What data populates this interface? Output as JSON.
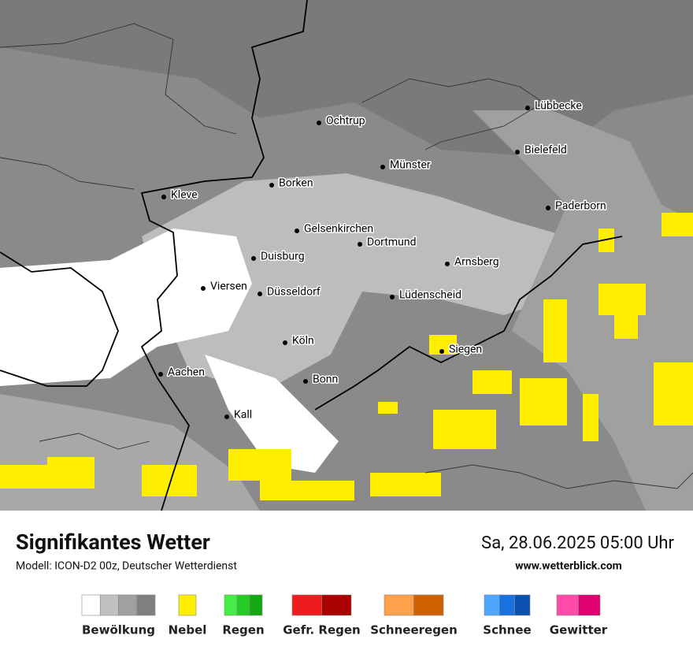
{
  "title": "Signifikantes Wetter",
  "subtitle": "Modell: ICON-D2 00z, Deutscher Wetterdienst",
  "datetime": "Sa, 28.06.2025 05:00 Uhr",
  "website": "www.wetterblick.com",
  "cities": [
    "Lübbecke",
    "Ochtrup",
    "Bielefeld",
    "Münster",
    "Borken",
    "Kleve",
    "Paderborn",
    "Gelsenkirchen",
    "Dortmund",
    "Duisburg",
    "Arnsberg",
    "Viersen",
    "Düsseldorf",
    "Lüdenscheid",
    "Köln",
    "Siegen",
    "Aachen",
    "Bonn",
    "Kall"
  ],
  "legend": [
    {
      "label": "Bewölkung",
      "colors": [
        "#ffffff",
        "#c0c0c0",
        "#a0a0a0",
        "#808080"
      ]
    },
    {
      "label": "Nebel",
      "colors": [
        "#ffee00"
      ]
    },
    {
      "label": "Regen",
      "colors": [
        "#44ee44",
        "#22cc22",
        "#10aa10"
      ]
    },
    {
      "label": "Gefr. Regen",
      "colors": [
        "#ee1c1c",
        "#aa0000"
      ]
    },
    {
      "label": "Schneeregen",
      "colors": [
        "#ffa04a",
        "#d06000"
      ]
    },
    {
      "label": "Schnee",
      "colors": [
        "#4ea6ff",
        "#1a70e0",
        "#0a50b0"
      ]
    },
    {
      "label": "Gewitter",
      "colors": [
        "#ff4aa8",
        "#e00070"
      ]
    }
  ]
}
